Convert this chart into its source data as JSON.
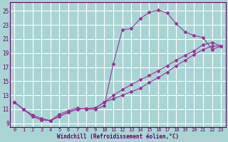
{
  "xlabel": "Windchill (Refroidissement éolien,°C)",
  "background_color": "#aad4d4",
  "grid_color": "#c8e8e8",
  "line_color": "#993399",
  "marker_color": "#993399",
  "xlim": [
    -0.5,
    23.5
  ],
  "ylim": [
    8.5,
    26.2
  ],
  "xticks": [
    0,
    1,
    2,
    3,
    4,
    5,
    6,
    7,
    8,
    9,
    10,
    11,
    12,
    13,
    14,
    15,
    16,
    17,
    18,
    19,
    20,
    21,
    22,
    23
  ],
  "yticks": [
    9,
    11,
    13,
    15,
    17,
    19,
    21,
    23,
    25
  ],
  "curve1_x": [
    0,
    1,
    2,
    3,
    4,
    5,
    6,
    7,
    8,
    9,
    10,
    11,
    12,
    13,
    14,
    15,
    16,
    17,
    18,
    19,
    20,
    21,
    22,
    23
  ],
  "curve1_y": [
    12.0,
    11.0,
    10.2,
    9.7,
    9.4,
    10.3,
    10.8,
    11.2,
    11.0,
    11.0,
    11.5,
    17.5,
    22.3,
    22.5,
    23.9,
    24.8,
    25.1,
    24.7,
    23.2,
    22.0,
    21.5,
    21.2,
    19.5,
    20.0
  ],
  "curve2_x": [
    0,
    1,
    2,
    3,
    4,
    5,
    6,
    7,
    8,
    9,
    10,
    11,
    12,
    13,
    14,
    15,
    16,
    17,
    18,
    19,
    20,
    21,
    22,
    23
  ],
  "curve2_y": [
    12.0,
    11.0,
    10.0,
    9.5,
    9.4,
    10.0,
    10.6,
    11.0,
    11.1,
    11.2,
    12.0,
    13.0,
    13.8,
    14.5,
    15.2,
    15.8,
    16.5,
    17.2,
    18.0,
    18.7,
    19.3,
    20.2,
    20.5,
    20.0
  ],
  "curve3_x": [
    0,
    1,
    2,
    3,
    4,
    5,
    6,
    7,
    8,
    9,
    10,
    11,
    12,
    13,
    14,
    15,
    16,
    17,
    18,
    19,
    20,
    21,
    22,
    23
  ],
  "curve3_y": [
    12.0,
    11.0,
    10.0,
    9.5,
    9.4,
    10.0,
    10.6,
    11.0,
    11.1,
    11.2,
    12.0,
    12.5,
    13.0,
    13.5,
    14.0,
    14.8,
    15.5,
    16.3,
    17.2,
    18.0,
    18.8,
    19.5,
    20.0,
    20.0
  ]
}
